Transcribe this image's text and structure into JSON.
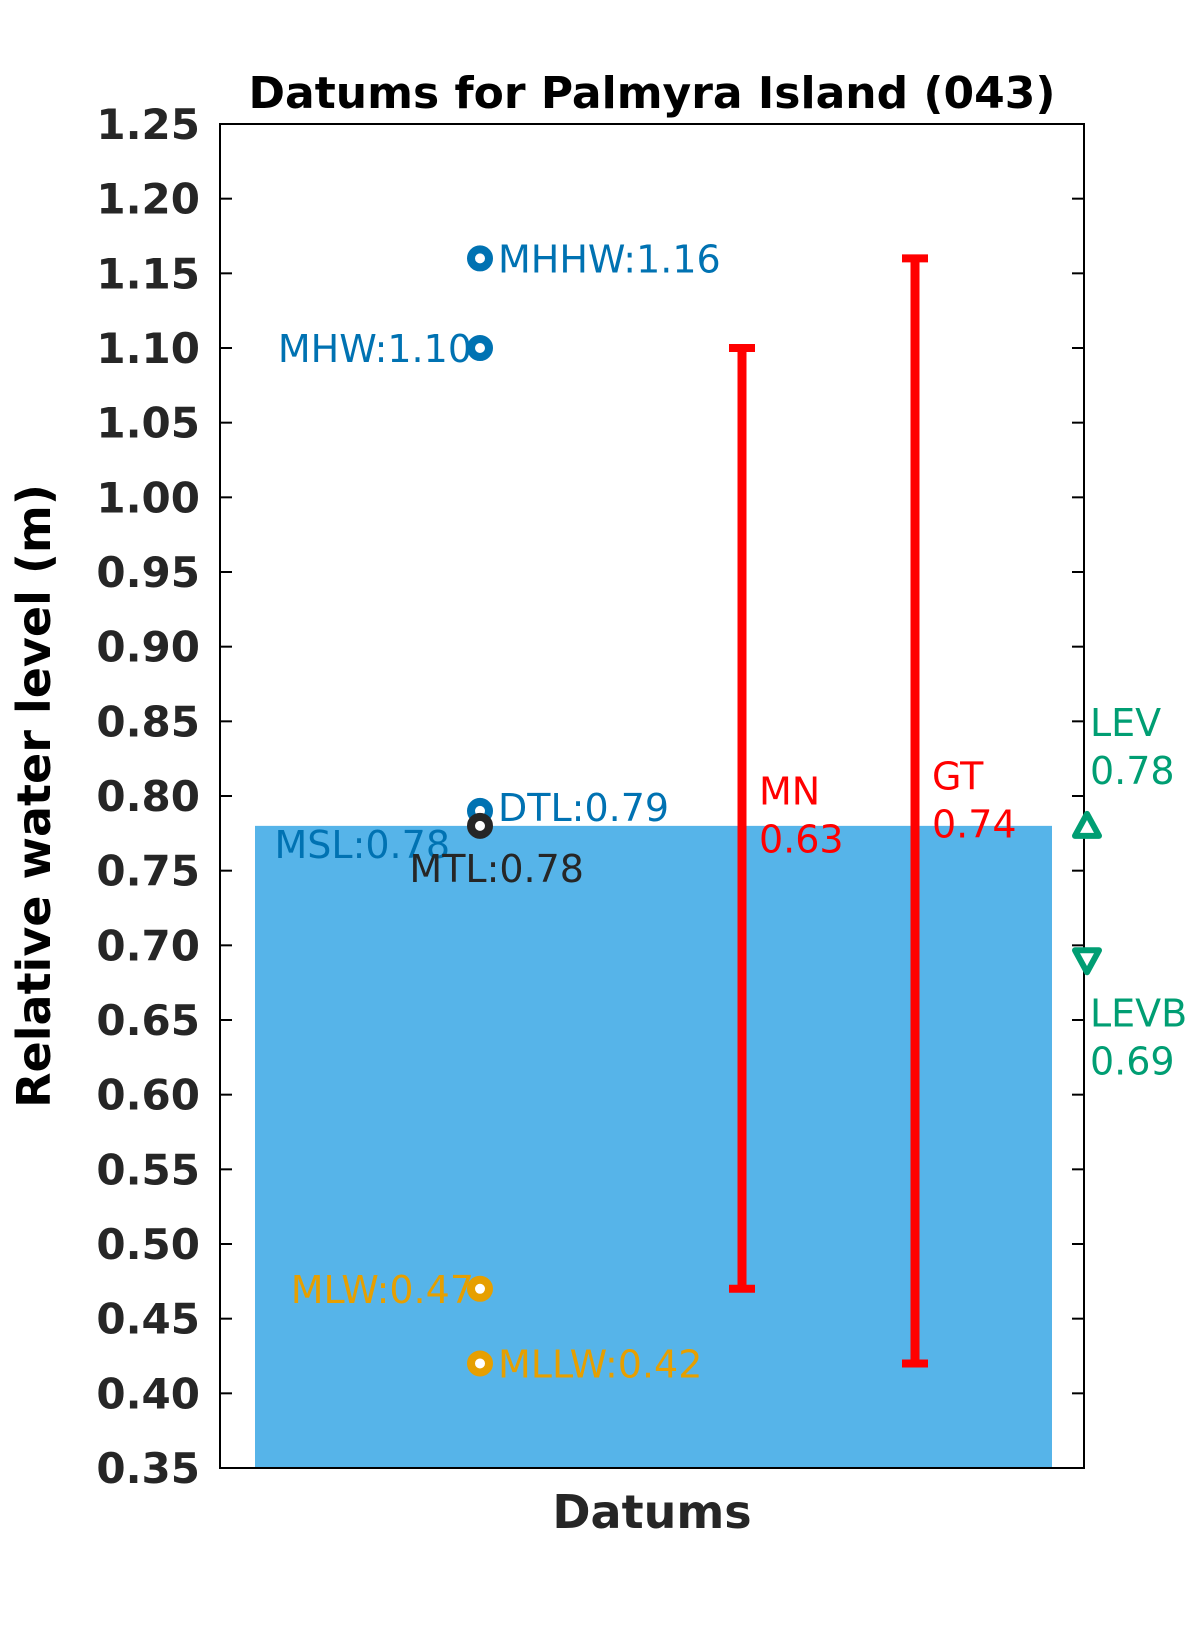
{
  "chart_data": {
    "type": "bar",
    "title": "Datums for Palmyra Island (043)",
    "xlabel": "Datums",
    "ylabel": "Relative water level (m)",
    "ylim": [
      0.35,
      1.25
    ],
    "yticks": [
      "0.35",
      "0.40",
      "0.45",
      "0.50",
      "0.55",
      "0.60",
      "0.65",
      "0.70",
      "0.75",
      "0.80",
      "0.85",
      "0.90",
      "0.95",
      "1.00",
      "1.05",
      "1.10",
      "1.15",
      "1.20",
      "1.25"
    ],
    "grid": false,
    "legend": "none",
    "bar": {
      "label": "MSL",
      "value": 0.78,
      "color": "#56b4e9"
    },
    "colors": {
      "high": "#0072b2",
      "low": "#e69f00",
      "mid": "#262626",
      "range": "#ff0000",
      "extreme": "#009e73"
    },
    "points": [
      {
        "label": "MHHW",
        "value": 1.16,
        "text": "MHHW:1.16",
        "group": "high"
      },
      {
        "label": "MHW",
        "value": 1.1,
        "text": "MHW:1.10",
        "group": "high"
      },
      {
        "label": "DTL",
        "value": 0.79,
        "text": "DTL:0.79",
        "group": "high"
      },
      {
        "label": "MSL",
        "value": 0.78,
        "text": "MSL:0.78",
        "group": "high"
      },
      {
        "label": "MTL",
        "value": 0.78,
        "text": "MTL:0.78",
        "group": "mid"
      },
      {
        "label": "MLW",
        "value": 0.47,
        "text": "MLW:0.47",
        "group": "low"
      },
      {
        "label": "MLLW",
        "value": 0.42,
        "text": "MLLW:0.42",
        "group": "low"
      }
    ],
    "ranges": [
      {
        "label": "MN",
        "value": 0.63,
        "low": 0.47,
        "high": 1.1,
        "text_name": "MN",
        "text_value": "0.63"
      },
      {
        "label": "GT",
        "value": 0.74,
        "low": 0.42,
        "high": 1.16,
        "text_name": "GT",
        "text_value": "0.74"
      }
    ],
    "extremes": [
      {
        "label": "LEV",
        "value": 0.78,
        "text_name": "LEV",
        "text_value": "0.78",
        "marker": "triangle-up"
      },
      {
        "label": "LEVB",
        "value": 0.69,
        "text_name": "LEVB",
        "text_value": "0.69",
        "marker": "triangle-down"
      }
    ]
  }
}
